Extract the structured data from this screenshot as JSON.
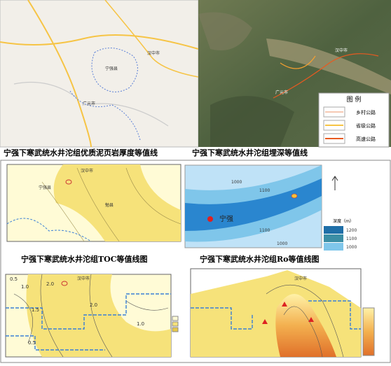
{
  "road_map": {
    "labels": [
      "汉中市",
      "广元市",
      "宁强县"
    ]
  },
  "satellite": {
    "labels": [
      "汉中市",
      "广元市"
    ],
    "legend": {
      "title": "图 例",
      "items": [
        "乡村公路",
        "省级公路",
        "高速公路"
      ]
    }
  },
  "panels": [
    {
      "title": "宁强下寒武统水井沱组优质泥页岩厚度等值线",
      "labels": [
        "汉中市",
        "宁强县",
        "勉县"
      ]
    },
    {
      "title": "宁强下寒武统水井沱组埋深等值线",
      "labels": [
        "宁强",
        "1000",
        "1100",
        "1100",
        "1000"
      ],
      "legend": {
        "title": "深度（m）",
        "items": [
          "1200",
          "1100",
          "1000"
        ]
      }
    },
    {
      "title": "宁强下寒武统水井沱组TOC等值线图",
      "labels": [
        "汉中市",
        "0.5",
        "1.0",
        "2.0",
        "1.5",
        "2.0",
        "1.0",
        "0.5"
      ]
    },
    {
      "title": "宁强下寒武统水井沱组Ro等值线图",
      "labels": [
        "汉中市"
      ]
    }
  ]
}
